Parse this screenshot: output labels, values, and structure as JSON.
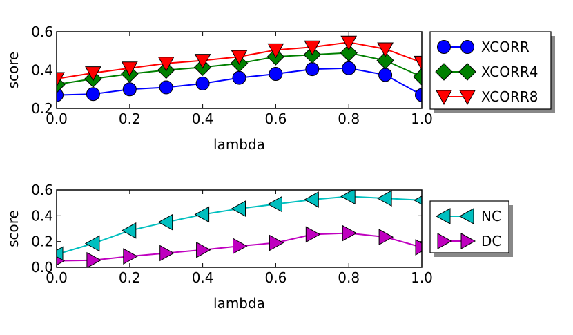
{
  "colors": {
    "XCORR": "#0000ff",
    "XCORR4": "#008000",
    "XCORR8": "#ff0000",
    "NC": "#00bfbf",
    "DC": "#bf00bf"
  },
  "chart_data": [
    {
      "type": "line",
      "xlabel": "lambda",
      "ylabel": "score",
      "xlim": [
        0.0,
        1.0
      ],
      "ylim": [
        0.2,
        0.6
      ],
      "xticks": [
        "0.0",
        "0.2",
        "0.4",
        "0.6",
        "0.8",
        "1.0"
      ],
      "yticks": [
        "0.2",
        "0.4",
        "0.6"
      ],
      "legend_position": "right",
      "x": [
        0.0,
        0.1,
        0.2,
        0.3,
        0.4,
        0.5,
        0.6,
        0.7,
        0.8,
        0.9,
        1.0
      ],
      "series": [
        {
          "name": "XCORR",
          "marker": "circle",
          "color": "#0000ff",
          "values": [
            0.27,
            0.275,
            0.3,
            0.31,
            0.33,
            0.36,
            0.38,
            0.405,
            0.41,
            0.375,
            0.27
          ]
        },
        {
          "name": "XCORR4",
          "marker": "diamond",
          "color": "#008000",
          "values": [
            0.325,
            0.355,
            0.38,
            0.4,
            0.415,
            0.435,
            0.47,
            0.48,
            0.49,
            0.45,
            0.365
          ]
        },
        {
          "name": "XCORR8",
          "marker": "triangle-down",
          "color": "#ff0000",
          "values": [
            0.355,
            0.385,
            0.41,
            0.435,
            0.45,
            0.47,
            0.505,
            0.52,
            0.545,
            0.51,
            0.44
          ]
        }
      ]
    },
    {
      "type": "line",
      "xlabel": "lambda",
      "ylabel": "score",
      "xlim": [
        0.0,
        1.0
      ],
      "ylim": [
        0.0,
        0.6
      ],
      "xticks": [
        "0.0",
        "0.2",
        "0.4",
        "0.6",
        "0.8",
        "1.0"
      ],
      "yticks": [
        "0.0",
        "0.2",
        "0.4",
        "0.6"
      ],
      "legend_position": "right",
      "x": [
        0.0,
        0.1,
        0.2,
        0.3,
        0.4,
        0.5,
        0.6,
        0.7,
        0.8,
        0.9,
        1.0
      ],
      "series": [
        {
          "name": "NC",
          "marker": "triangle-left",
          "color": "#00bfbf",
          "values": [
            0.1,
            0.185,
            0.285,
            0.35,
            0.41,
            0.455,
            0.49,
            0.525,
            0.55,
            0.535,
            0.52
          ]
        },
        {
          "name": "DC",
          "marker": "triangle-right",
          "color": "#bf00bf",
          "values": [
            0.05,
            0.055,
            0.085,
            0.11,
            0.135,
            0.165,
            0.19,
            0.255,
            0.265,
            0.235,
            0.155
          ]
        }
      ]
    }
  ]
}
